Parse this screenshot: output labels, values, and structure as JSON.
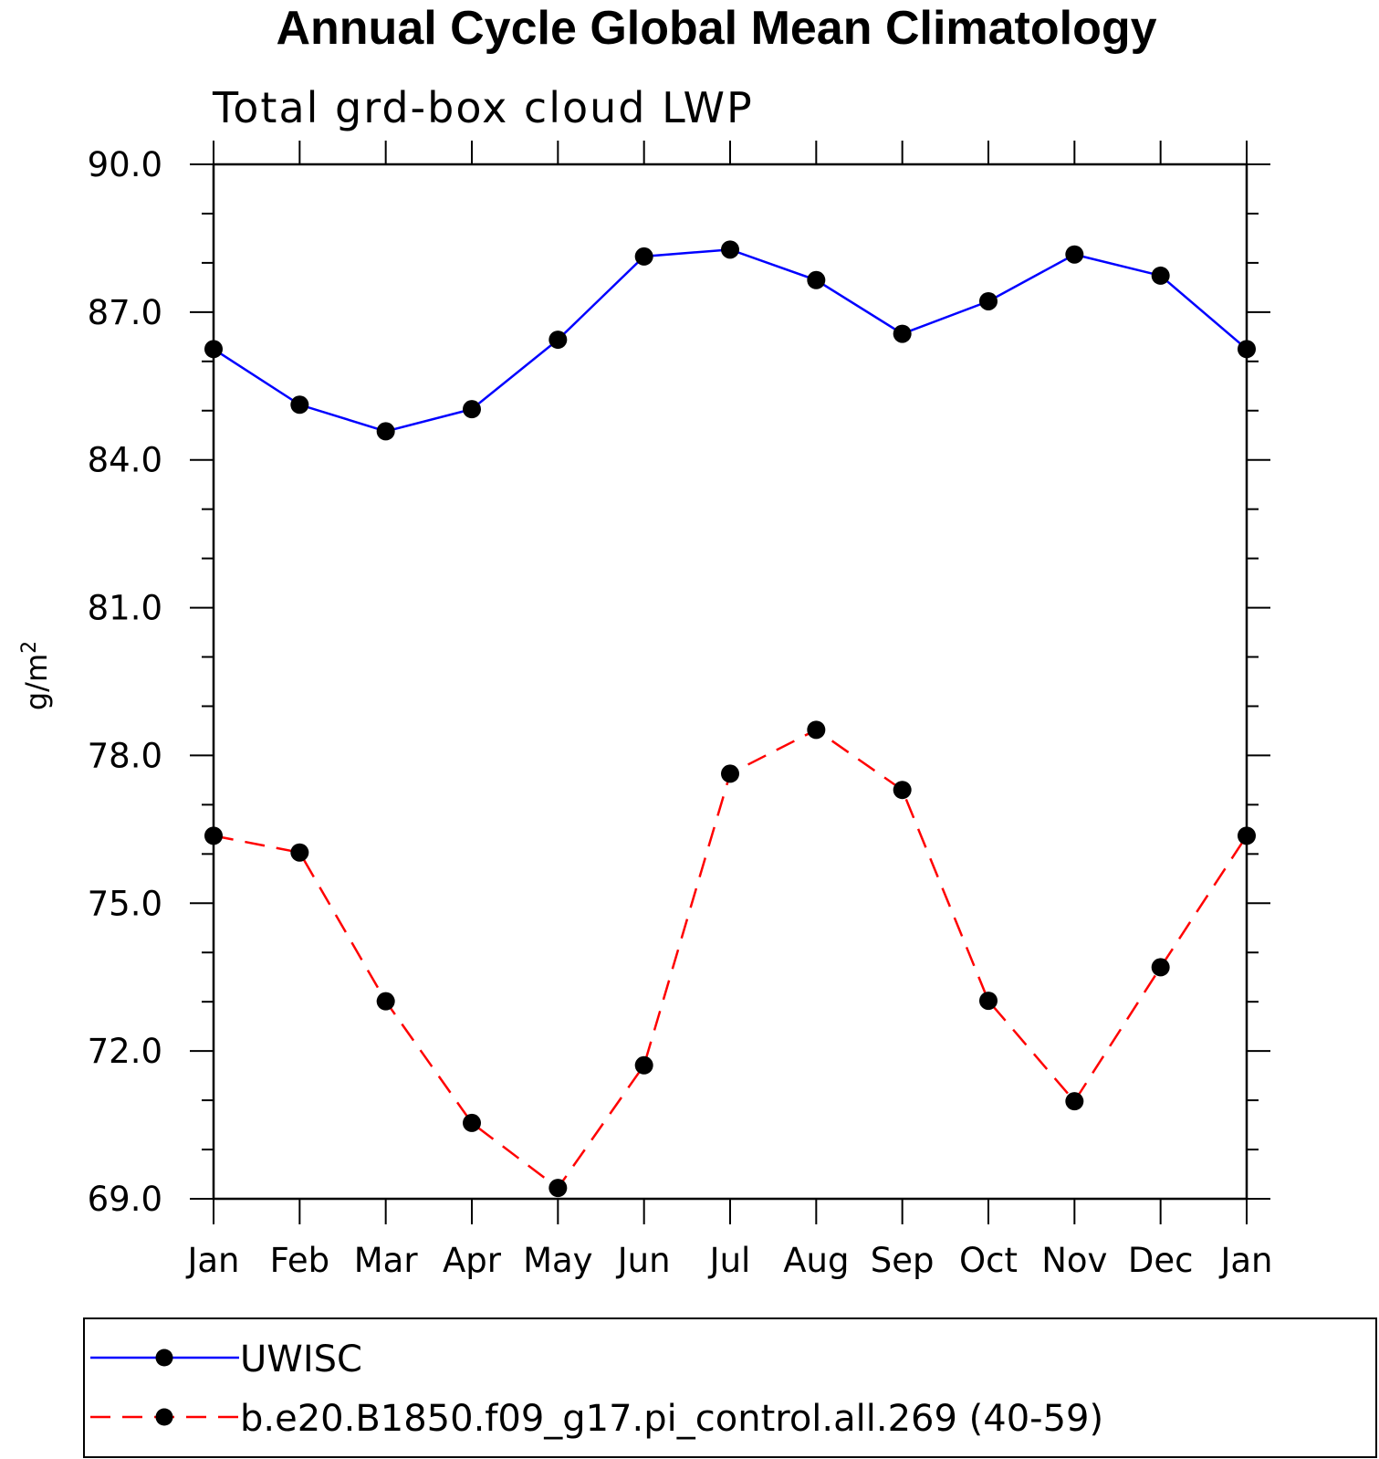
{
  "chart_data": {
    "type": "line",
    "title": "Annual Cycle Global Mean Climatology",
    "subtitle": "Total grd-box cloud LWP",
    "ylabel_base": "g/m",
    "ylabel_sup": "2",
    "xlabel": "",
    "categories": [
      "Jan",
      "Feb",
      "Mar",
      "Apr",
      "May",
      "Jun",
      "Jul",
      "Aug",
      "Sep",
      "Oct",
      "Nov",
      "Dec",
      "Jan"
    ],
    "ylim": [
      69.0,
      90.0
    ],
    "yticks": [
      "69.0",
      "72.0",
      "75.0",
      "78.0",
      "81.0",
      "84.0",
      "87.0",
      "90.0"
    ],
    "minor_step": 1.0,
    "grid": false,
    "legend_position": "bottom",
    "series": [
      {
        "name": "UWISC",
        "color": "#0000ff",
        "dash": "solid",
        "marker": "filled-circle",
        "values": [
          86.25,
          85.12,
          84.58,
          85.03,
          86.44,
          88.13,
          88.27,
          87.65,
          86.56,
          87.22,
          88.17,
          87.74,
          86.25
        ]
      },
      {
        "name": "b.e20.B1850.f09_g17.pi_control.all.269 (40-59)",
        "color": "#ff0000",
        "dash": "dashed",
        "marker": "filled-circle",
        "values": [
          76.37,
          76.03,
          73.01,
          70.54,
          69.22,
          71.71,
          77.63,
          78.52,
          77.3,
          73.02,
          70.98,
          73.7,
          76.37
        ]
      }
    ]
  }
}
